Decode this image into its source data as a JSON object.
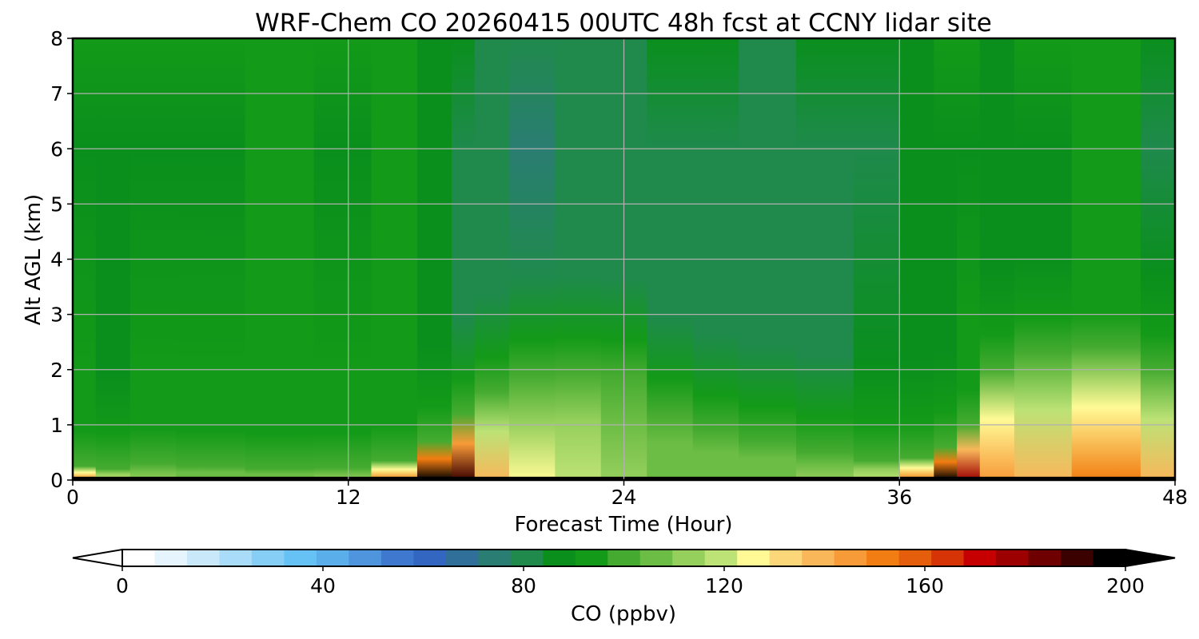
{
  "title": "WRF-Chem CO  20260415 00UTC 48h fcst at CCNY lidar site",
  "chart_data": {
    "type": "heatmap",
    "title": "WRF-Chem CO  20260415 00UTC 48h fcst at CCNY lidar site",
    "xlabel": "Forecast Time (Hour)",
    "ylabel": "Alt AGL (km)",
    "xlim": [
      0,
      48
    ],
    "ylim": [
      0,
      8
    ],
    "xticks": [
      0,
      12,
      24,
      36,
      48
    ],
    "yticks": [
      0,
      1,
      2,
      3,
      4,
      5,
      6,
      7,
      8
    ],
    "grid": true,
    "colorbar": {
      "label": "CO  (ppbv)",
      "range": [
        0,
        200
      ],
      "ticks": [
        0,
        40,
        80,
        120,
        160,
        200
      ],
      "extend": "both",
      "colors": [
        "#ffffff",
        "#e6f4fd",
        "#c9e9fb",
        "#a8dcf8",
        "#86cef6",
        "#66c2f5",
        "#5aaeea",
        "#4e95de",
        "#3f79cf",
        "#3366c0",
        "#2f6f9a",
        "#2a7d72",
        "#1f8a4c",
        "#0a8f1d",
        "#139a18",
        "#45ab30",
        "#6cbd45",
        "#95cf5c",
        "#bde276",
        "#fffa96",
        "#fcd77a",
        "#f9b75a",
        "#f79a38",
        "#f27d12",
        "#e55e0c",
        "#d63306",
        "#c60000",
        "#9c0000",
        "#6e0000",
        "#3b0000",
        "#000000"
      ]
    },
    "x_hours": [
      0,
      2,
      3,
      6,
      9,
      12,
      14,
      16,
      17,
      18,
      20,
      22,
      24,
      26,
      28,
      30,
      33,
      35,
      37,
      38,
      39,
      40,
      42,
      45,
      48
    ],
    "surface_layer_top_km": [
      0.25,
      0.2,
      0.3,
      0.25,
      0.2,
      0.22,
      0.35,
      0.7,
      1.2,
      1.6,
      1.9,
      1.95,
      1.9,
      1.2,
      0.9,
      0.7,
      0.5,
      0.35,
      0.4,
      0.6,
      1.0,
      2.0,
      2.3,
      2.4,
      2.0
    ],
    "boundary_layer_max_ppbv": [
      150,
      120,
      110,
      108,
      108,
      110,
      150,
      200,
      190,
      140,
      125,
      120,
      110,
      108,
      106,
      106,
      110,
      120,
      150,
      200,
      180,
      145,
      140,
      150,
      140
    ],
    "free_troposphere_ppbv_2_to_8km": [
      88,
      87,
      88,
      89,
      92,
      88,
      90,
      84,
      80,
      78,
      76,
      77,
      78,
      80,
      80,
      78,
      80,
      82,
      84,
      86,
      88,
      84,
      86,
      90,
      82
    ]
  }
}
